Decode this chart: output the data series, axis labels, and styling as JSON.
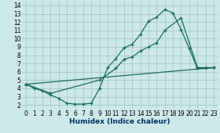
{
  "xlabel": "Humidex (Indice chaleur)",
  "background_color": "#cce8e8",
  "grid_color": "#aacccc",
  "line_color": "#1a6b5a",
  "xlim": [
    -0.5,
    23.5
  ],
  "ylim": [
    1.5,
    14.5
  ],
  "xticks": [
    0,
    1,
    2,
    3,
    4,
    5,
    6,
    7,
    8,
    9,
    10,
    11,
    12,
    13,
    14,
    15,
    16,
    17,
    18,
    19,
    20,
    21,
    22,
    23
  ],
  "yticks": [
    2,
    3,
    4,
    5,
    6,
    7,
    8,
    9,
    10,
    11,
    12,
    13,
    14
  ],
  "line1_x": [
    0,
    1,
    2,
    3,
    4,
    5,
    6,
    7,
    8,
    9,
    10,
    11,
    12,
    13,
    14,
    15,
    16,
    17,
    18,
    19,
    20,
    21,
    22,
    23
  ],
  "line1_y": [
    4.5,
    4.0,
    3.7,
    3.2,
    2.8,
    2.2,
    2.1,
    2.1,
    2.2,
    4.0,
    6.5,
    7.6,
    8.9,
    9.3,
    10.5,
    12.1,
    12.6,
    13.5,
    13.1,
    11.1,
    8.8,
    6.4,
    6.4,
    6.5
  ],
  "line2_x": [
    0,
    3,
    9,
    11,
    12,
    13,
    14,
    15,
    16,
    17,
    19,
    21,
    22,
    23
  ],
  "line2_y": [
    4.5,
    3.4,
    5.0,
    6.4,
    7.5,
    7.8,
    8.5,
    9.0,
    9.5,
    11.0,
    12.5,
    6.5,
    6.5,
    6.5
  ],
  "line3_x": [
    0,
    23
  ],
  "line3_y": [
    4.5,
    6.5
  ],
  "xlabel_color": "#003366",
  "xlabel_fontsize": 6.5,
  "tick_fontsize": 5.5
}
